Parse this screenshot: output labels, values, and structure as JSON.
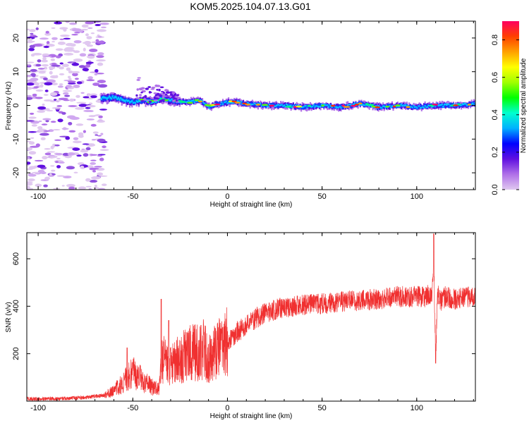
{
  "chart_data": [
    {
      "type": "heatmap",
      "title": "KOM5.2025.104.07.13.G01",
      "xlabel": "Height of straight line (km)",
      "ylabel": "Frequency (Hz)",
      "xlim": [
        -106,
        131
      ],
      "ylim": [
        -25,
        25
      ],
      "x_ticks": [
        -100,
        -50,
        0,
        50,
        100
      ],
      "y_ticks": [
        -20,
        -10,
        0,
        10,
        20
      ],
      "colorbar": {
        "label": "Normalized spectral amplitude",
        "range": [
          0,
          0.9
        ],
        "ticks": [
          "0.0",
          "0.2",
          "0.4",
          "0.6",
          "0.8"
        ],
        "colors": [
          "#e0c8f0",
          "#b070e8",
          "#6010e0",
          "#0000ff",
          "#00b0ff",
          "#00ffd0",
          "#00ff00",
          "#a0ff00",
          "#ffff00",
          "#ffa000",
          "#ff4000",
          "#ff0060"
        ]
      },
      "ridge": {
        "x": [
          -67,
          -60,
          -55,
          -50,
          -45,
          -40,
          -35,
          -30,
          -25,
          -20,
          -15,
          -10,
          -5,
          0,
          5,
          10,
          20,
          30,
          40,
          50,
          60,
          70,
          80,
          90,
          100,
          110,
          120,
          131
        ],
        "frequency": [
          2.0,
          2.5,
          1.5,
          1.0,
          1.5,
          1.0,
          2.0,
          1.5,
          1.0,
          1.0,
          1.5,
          -0.5,
          0.5,
          1.0,
          1.0,
          0.5,
          0.0,
          0.0,
          -0.5,
          0.0,
          -0.5,
          0.5,
          -0.5,
          0.0,
          -0.5,
          0.0,
          0.0,
          0.5
        ]
      },
      "noise_region_x": [
        -106,
        -65
      ]
    },
    {
      "type": "line",
      "xlabel": "Height of straight line (km)",
      "ylabel": "SNR (v/v)",
      "xlim": [
        -106,
        131
      ],
      "ylim": [
        0,
        710
      ],
      "x_ticks": [
        -100,
        -50,
        0,
        50,
        100
      ],
      "y_ticks": [
        200,
        400,
        600
      ],
      "color": "#f03030",
      "envelope": {
        "x": [
          -106,
          -90,
          -75,
          -65,
          -60,
          -55,
          -50,
          -45,
          -40,
          -36,
          -35,
          -32,
          -30,
          -25,
          -20,
          -15,
          -12,
          -10,
          -5,
          0,
          5,
          10,
          15,
          20,
          25,
          30,
          40,
          50,
          60,
          70,
          80,
          90,
          100,
          105,
          108,
          109,
          110,
          111,
          113,
          115,
          120,
          125,
          131
        ],
        "snr": [
          10,
          10,
          15,
          25,
          45,
          80,
          120,
          90,
          60,
          50,
          190,
          160,
          150,
          180,
          200,
          210,
          220,
          170,
          220,
          250,
          290,
          320,
          350,
          370,
          385,
          395,
          405,
          410,
          420,
          425,
          430,
          440,
          440,
          440,
          460,
          600,
          180,
          450,
          420,
          440,
          430,
          440,
          440
        ]
      },
      "spikes": [
        {
          "x": -53,
          "snr": 225
        },
        {
          "x": -35,
          "snr": 430
        },
        {
          "x": -31,
          "snr": 340
        },
        {
          "x": -14,
          "snr": 320
        },
        {
          "x": 109,
          "snr": 705
        },
        {
          "x": 110,
          "snr": 160
        }
      ]
    }
  ]
}
